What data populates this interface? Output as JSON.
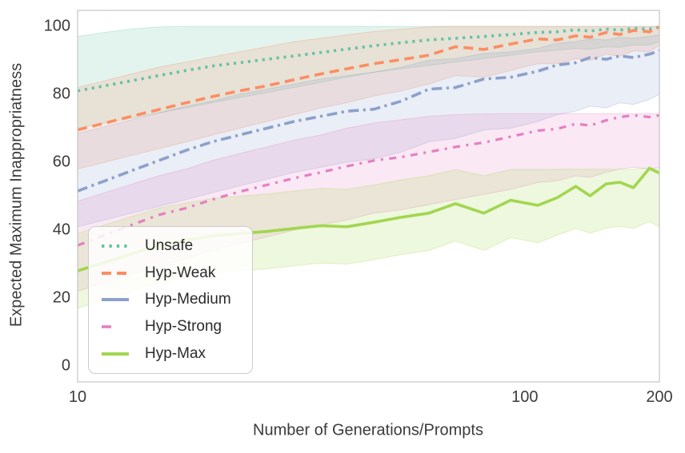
{
  "chart_data": {
    "type": "line",
    "title": "",
    "xlabel": "Number of Generations/Prompts",
    "ylabel": "Expected Maximum Inappropriatness",
    "x_scale": "log",
    "xlim": [
      10,
      200
    ],
    "ylim": [
      0,
      100
    ],
    "grid": false,
    "legend_position": "lower left",
    "x_ticks": [
      10,
      100,
      200
    ],
    "y_ticks": [
      0,
      20,
      40,
      60,
      80,
      100
    ],
    "x": [
      10,
      11.5,
      13.2,
      15.2,
      17.5,
      20,
      23,
      26.5,
      30.5,
      35,
      40,
      46,
      53,
      61,
      70,
      81,
      93,
      107,
      118,
      130,
      140,
      152,
      163,
      175,
      190,
      200
    ],
    "series": [
      {
        "name": "Unsafe",
        "color": "#66c2a5",
        "dash": "dotted",
        "values": [
          81,
          82.5,
          84,
          85.5,
          87,
          88.3,
          89.3,
          90.3,
          91.3,
          92.3,
          93.3,
          94.3,
          95.2,
          96,
          96.5,
          97,
          97.6,
          98.2,
          98.4,
          99,
          98.6,
          99.2,
          98.9,
          99.4,
          99.2,
          99.8
        ],
        "band_lower": [
          70,
          71.5,
          73,
          74.5,
          76,
          77.5,
          79,
          80.5,
          82,
          83.5,
          85,
          86.5,
          87.5,
          88.5,
          89.5,
          90.5,
          91.5,
          92.5,
          93,
          93.5,
          93.2,
          94,
          93.8,
          94.5,
          94.5,
          95.5
        ],
        "band_upper": [
          97,
          98.2,
          99.2,
          99.8,
          100,
          100,
          100,
          100,
          100,
          100,
          100,
          100,
          100,
          100,
          100,
          100,
          100,
          100,
          100,
          100,
          100,
          100,
          100,
          100,
          100,
          100
        ]
      },
      {
        "name": "Hyp-Weak",
        "color": "#fc8d62",
        "dash": "dashed",
        "values": [
          69.5,
          71.5,
          73.5,
          75.5,
          77.5,
          79.3,
          81,
          82.5,
          84.3,
          86,
          87.5,
          89,
          90.2,
          91.5,
          94,
          93.2,
          94.8,
          96.3,
          96,
          97.2,
          96.8,
          98.2,
          97.6,
          98.8,
          98.4,
          99.8
        ],
        "band_lower": [
          58,
          60,
          62,
          64,
          66,
          68,
          70,
          72,
          74,
          76,
          77.5,
          79.5,
          81,
          83,
          85.5,
          85,
          87,
          89,
          89,
          90.5,
          90,
          91.8,
          91.2,
          92.8,
          92.5,
          94.5
        ],
        "band_upper": [
          82,
          84,
          86,
          88,
          89.5,
          91,
          92.5,
          94,
          95.5,
          96.5,
          97.5,
          98.5,
          99.2,
          99.8,
          100,
          100,
          100,
          100,
          100,
          100,
          100,
          100,
          100,
          100,
          100,
          100
        ]
      },
      {
        "name": "Hyp-Medium",
        "color": "#8da0cb",
        "dash": "dashdot",
        "values": [
          51.5,
          54.5,
          57.5,
          60.5,
          63.5,
          66,
          68,
          70,
          72,
          73.5,
          75,
          75.6,
          78,
          81.5,
          82,
          84.5,
          85,
          86.8,
          88.6,
          89.3,
          90.8,
          90.3,
          91.3,
          90.8,
          91.8,
          92.8
        ],
        "band_lower": [
          41,
          43,
          45,
          47,
          49,
          51,
          53,
          55,
          57,
          58.5,
          60,
          61,
          63,
          66,
          67,
          69.5,
          70,
          72,
          74,
          75,
          76.5,
          76,
          77.5,
          77,
          78.5,
          80
        ],
        "band_upper": [
          68.5,
          70.5,
          72.5,
          74.5,
          76.5,
          78,
          80,
          81.5,
          83,
          84.5,
          85.5,
          86.5,
          88,
          90,
          90.5,
          92,
          92.5,
          93.5,
          95,
          95.5,
          96.3,
          96,
          96.8,
          96.5,
          97,
          97.5
        ]
      },
      {
        "name": "Hyp-Strong",
        "color": "#e47fc1",
        "dash": "dashdot_short",
        "values": [
          35.5,
          38.5,
          41.5,
          44.5,
          46.5,
          49,
          51.3,
          53.3,
          55.3,
          57,
          58.8,
          60.5,
          61.5,
          63,
          64.5,
          65.8,
          67.5,
          69.3,
          69.8,
          71.3,
          70.8,
          72.3,
          73.3,
          73.8,
          73.3,
          73.8
        ],
        "band_lower": [
          22,
          24.5,
          27,
          29.5,
          31.5,
          34,
          36,
          38,
          40,
          41.5,
          43,
          45,
          46,
          47.5,
          49,
          50.5,
          52,
          54,
          54.5,
          56,
          55.5,
          57,
          58,
          58.5,
          58,
          58.5
        ],
        "band_upper": [
          48.5,
          51,
          53.5,
          56,
          58,
          60.5,
          62.5,
          64.5,
          66.5,
          68,
          70,
          71.5,
          72.5,
          73.5,
          74,
          74.2,
          74.3,
          74.3,
          74.3,
          74.3,
          74.3,
          74.3,
          74.3,
          74.3,
          74.3,
          74.3
        ]
      },
      {
        "name": "Hyp-Max",
        "color": "#a2d64f",
        "dash": "solid",
        "values": [
          28,
          30.5,
          33,
          35.5,
          37,
          38.3,
          39,
          39.6,
          40.5,
          41.3,
          41,
          42.3,
          43.8,
          45,
          47.8,
          45,
          48.8,
          47.3,
          49.5,
          52.9,
          50.1,
          53.6,
          54.1,
          52.5,
          58.2,
          56.8
        ],
        "band_lower": [
          17,
          19.5,
          22,
          24.5,
          26,
          27.3,
          28,
          28.6,
          29.5,
          30.3,
          30,
          31.3,
          32.8,
          34,
          36.8,
          34,
          37.8,
          36.3,
          38.5,
          40.5,
          39.1,
          40.6,
          41.1,
          40.5,
          42.5,
          41
        ],
        "band_upper": [
          39,
          41.5,
          44,
          46.5,
          48,
          49.3,
          50,
          50.6,
          51.5,
          52.3,
          52,
          53.3,
          54.8,
          56,
          57.8,
          56,
          57.8,
          57.8,
          57.9,
          57.9,
          57.9,
          57.9,
          57.9,
          57.9,
          58.3,
          57.9
        ]
      }
    ]
  },
  "legend": {
    "items": [
      "Unsafe",
      "Hyp-Weak",
      "Hyp-Medium",
      "Hyp-Strong",
      "Hyp-Max"
    ]
  },
  "colors": {
    "spine": "#c9c9c9",
    "text": "#3b3b3b",
    "background": "#ffffff"
  }
}
